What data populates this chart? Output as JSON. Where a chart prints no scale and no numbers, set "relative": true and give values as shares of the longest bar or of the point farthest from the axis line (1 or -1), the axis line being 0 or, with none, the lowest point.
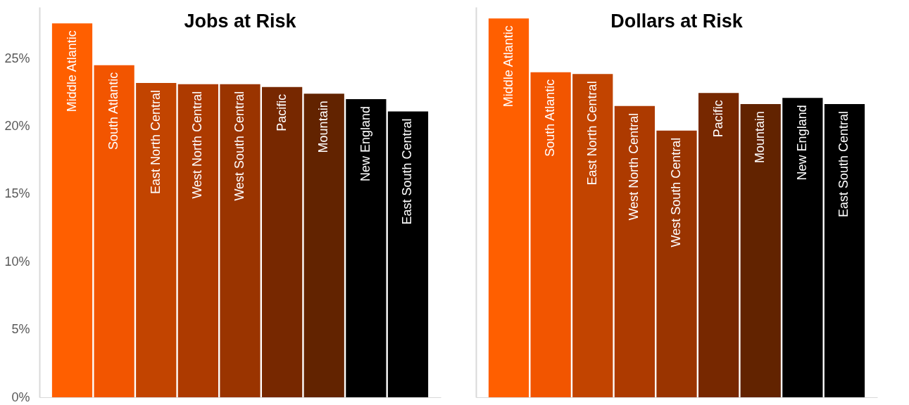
{
  "chart_data": [
    {
      "type": "bar",
      "title": "Jobs at Risk",
      "categories": [
        "Middle Atlantic",
        "South Atlantic",
        "East North Central",
        "West North Central",
        "West South Central",
        "Pacific",
        "Mountain",
        "New England",
        "East South Central"
      ],
      "values": [
        27.6,
        24.5,
        23.2,
        23.1,
        23.1,
        22.9,
        22.4,
        22.0,
        21.1
      ],
      "colors": [
        "#ff5f00",
        "#f25500",
        "#c24400",
        "#ad3a00",
        "#9a3400",
        "#772800",
        "#622300",
        "#000000",
        "#000000"
      ],
      "ylim": [
        0,
        28.8
      ],
      "yticks": [
        {
          "value": 0,
          "label": "0%"
        },
        {
          "value": 5,
          "label": "5%"
        },
        {
          "value": 10,
          "label": "10%"
        },
        {
          "value": 15,
          "label": "15%"
        },
        {
          "value": 20,
          "label": "20%"
        },
        {
          "value": 25,
          "label": "25%"
        }
      ],
      "tick_labels": "y",
      "grid": false
    },
    {
      "type": "bar",
      "title": "Dollars at Risk",
      "relative": true,
      "categories": [
        "Middle Atlantic",
        "South Atlantic",
        "East North Central",
        "West North Central",
        "West South Central",
        "Pacific",
        "Mountain",
        "New England",
        "East South Central"
      ],
      "values": [
        1,
        0.858,
        0.853,
        0.769,
        0.704,
        0.803,
        0.774,
        0.79,
        0.774
      ],
      "colors": [
        "#ff5f00",
        "#f25500",
        "#c24400",
        "#ad3a00",
        "#9a3400",
        "#772800",
        "#622300",
        "#000000",
        "#000000"
      ],
      "tick_labels": false,
      "grid": false
    }
  ]
}
